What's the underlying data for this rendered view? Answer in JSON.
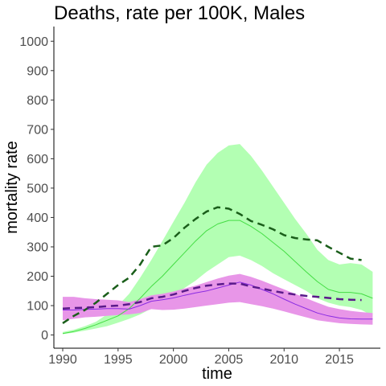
{
  "chart_data": {
    "type": "line",
    "title": "Deaths, rate per 100K, Males",
    "xlabel": "time",
    "ylabel": "mortality rate",
    "xlim": [
      1989.2,
      2018.7
    ],
    "ylim": [
      -45,
      1050
    ],
    "xticks": [
      1990,
      1995,
      2000,
      2005,
      2010,
      2015
    ],
    "yticks": [
      0,
      100,
      200,
      300,
      400,
      500,
      600,
      700,
      800,
      900,
      1000
    ],
    "grid": false,
    "legend": "none",
    "series": [
      {
        "kind": "band",
        "color": "#b3ffb3",
        "x": [
          1990,
          1991,
          1992,
          1993,
          1994,
          1995,
          1996,
          1997,
          1998,
          1999,
          2000,
          2001,
          2002,
          2003,
          2004,
          2005,
          2006,
          2007,
          2008,
          2009,
          2010,
          2011,
          2012,
          2013,
          2014,
          2015,
          2016,
          2017,
          2018
        ],
        "upper": [
          10,
          18,
          30,
          45,
          70,
          100,
          140,
          195,
          255,
          320,
          385,
          450,
          520,
          580,
          620,
          645,
          650,
          610,
          560,
          505,
          450,
          395,
          345,
          290,
          255,
          240,
          245,
          240,
          215
        ],
        "lower": [
          3,
          8,
          15,
          22,
          30,
          42,
          55,
          70,
          90,
          110,
          135,
          160,
          185,
          215,
          240,
          265,
          270,
          255,
          235,
          210,
          190,
          170,
          150,
          125,
          110,
          100,
          95,
          85,
          65
        ]
      },
      {
        "kind": "band",
        "color": "#e896e8",
        "x": [
          1990,
          1991,
          1992,
          1993,
          1994,
          1995,
          1996,
          1997,
          1998,
          1999,
          2000,
          2001,
          2002,
          2003,
          2004,
          2005,
          2006,
          2007,
          2008,
          2009,
          2010,
          2011,
          2012,
          2013,
          2014,
          2015,
          2016,
          2017,
          2018
        ],
        "upper": [
          130,
          130,
          125,
          122,
          120,
          118,
          112,
          122,
          135,
          140,
          148,
          158,
          168,
          180,
          192,
          202,
          208,
          198,
          185,
          170,
          155,
          140,
          125,
          110,
          96,
          88,
          82,
          78,
          75
        ],
        "lower": [
          50,
          55,
          60,
          62,
          65,
          68,
          70,
          75,
          88,
          85,
          86,
          90,
          95,
          100,
          105,
          110,
          112,
          105,
          98,
          90,
          80,
          70,
          60,
          50,
          45,
          40,
          38,
          36,
          35
        ]
      },
      {
        "kind": "line",
        "color": "#44dd44",
        "width": 1,
        "dash": "",
        "x": [
          1990,
          1991,
          1992,
          1993,
          1994,
          1995,
          1996,
          1997,
          1998,
          1999,
          2000,
          2001,
          2002,
          2003,
          2004,
          2005,
          2006,
          2007,
          2008,
          2009,
          2010,
          2011,
          2012,
          2013,
          2014,
          2015,
          2016,
          2017,
          2018
        ],
        "values": [
          5,
          12,
          22,
          35,
          50,
          65,
          90,
          125,
          165,
          200,
          240,
          280,
          320,
          355,
          378,
          390,
          390,
          370,
          345,
          315,
          285,
          250,
          215,
          182,
          155,
          145,
          145,
          140,
          125
        ]
      },
      {
        "kind": "line",
        "color": "#8a2be2",
        "width": 1,
        "dash": "",
        "x": [
          1990,
          1991,
          1992,
          1993,
          1994,
          1995,
          1996,
          1997,
          1998,
          1999,
          2000,
          2001,
          2002,
          2003,
          2004,
          2005,
          2006,
          2007,
          2008,
          2009,
          2010,
          2011,
          2012,
          2013,
          2014,
          2015,
          2016,
          2017,
          2018
        ],
        "values": [
          85,
          85,
          87,
          88,
          90,
          90,
          88,
          100,
          115,
          120,
          126,
          135,
          143,
          150,
          160,
          170,
          180,
          170,
          155,
          140,
          122,
          105,
          90,
          75,
          65,
          58,
          55,
          54,
          54
        ]
      },
      {
        "kind": "line",
        "color": "#1a5e1a",
        "width": 2.5,
        "dash": "9,6",
        "x": [
          1990,
          1991,
          1992,
          1993,
          1994,
          1995,
          1996,
          1997,
          1998,
          1999,
          2000,
          2001,
          2002,
          2003,
          2004,
          2005,
          2006,
          2007,
          2008,
          2009,
          2010,
          2011,
          2012,
          2013,
          2014,
          2015,
          2016,
          2017
        ],
        "values": [
          40,
          65,
          85,
          110,
          140,
          170,
          195,
          240,
          300,
          305,
          330,
          365,
          395,
          420,
          435,
          430,
          412,
          388,
          375,
          360,
          340,
          330,
          325,
          322,
          300,
          280,
          260,
          255
        ]
      },
      {
        "kind": "line",
        "color": "#5a1a8a",
        "width": 2.5,
        "dash": "9,6",
        "x": [
          1990,
          1991,
          1992,
          1993,
          1994,
          1995,
          1996,
          1997,
          1998,
          1999,
          2000,
          2001,
          2002,
          2003,
          2004,
          2005,
          2006,
          2007,
          2008,
          2009,
          2010,
          2011,
          2012,
          2013,
          2014,
          2015,
          2016,
          2017
        ],
        "values": [
          90,
          92,
          93,
          95,
          98,
          100,
          105,
          112,
          125,
          130,
          138,
          150,
          160,
          168,
          172,
          175,
          175,
          165,
          158,
          150,
          143,
          138,
          133,
          130,
          126,
          122,
          120,
          119
        ]
      }
    ]
  }
}
